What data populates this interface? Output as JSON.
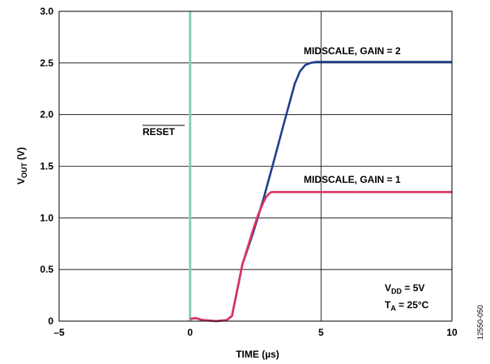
{
  "chart_data": {
    "type": "line",
    "title": "",
    "xlabel": "TIME (µs)",
    "ylabel": {
      "main": "V",
      "sub": "OUT",
      "unit": " (V)"
    },
    "xlim": [
      -5,
      10
    ],
    "ylim": [
      0,
      3.0
    ],
    "x_ticks": [
      -5,
      0,
      5,
      10
    ],
    "x_tick_labels": [
      "–5",
      "0",
      "5",
      "10"
    ],
    "y_ticks": [
      0,
      0.5,
      1.0,
      1.5,
      2.0,
      2.5,
      3.0
    ],
    "y_tick_labels": [
      "0",
      "0.5",
      "1.0",
      "1.5",
      "2.0",
      "2.5",
      "3.0"
    ],
    "grid": true,
    "series": [
      {
        "name": "MIDSCALE, GAIN = 2",
        "color": "#1f3f8f",
        "x": [
          0.0,
          0.2,
          0.5,
          1.0,
          1.4,
          1.6,
          1.8,
          2.0,
          2.4,
          2.8,
          3.2,
          3.6,
          4.0,
          4.2,
          4.4,
          4.6,
          4.8,
          5.0,
          6.0,
          8.0,
          10.0
        ],
        "y": [
          0.02,
          0.03,
          0.01,
          0.0,
          0.01,
          0.05,
          0.3,
          0.55,
          0.85,
          1.18,
          1.55,
          1.93,
          2.3,
          2.42,
          2.48,
          2.5,
          2.51,
          2.51,
          2.51,
          2.51,
          2.51
        ]
      },
      {
        "name": "MIDSCALE, GAIN = 1",
        "color": "#d9345f",
        "x": [
          0.0,
          0.2,
          0.5,
          1.0,
          1.4,
          1.6,
          1.8,
          2.0,
          2.4,
          2.6,
          2.8,
          2.9,
          3.0,
          3.1,
          3.2,
          3.4,
          4.0,
          6.0,
          8.0,
          10.0
        ],
        "y": [
          0.02,
          0.03,
          0.01,
          0.0,
          0.01,
          0.05,
          0.3,
          0.55,
          0.88,
          1.03,
          1.15,
          1.2,
          1.23,
          1.25,
          1.25,
          1.25,
          1.25,
          1.25,
          1.25,
          1.25
        ]
      },
      {
        "name": "RESET",
        "color": "#88cfb0",
        "x": [
          0.0,
          0.0
        ],
        "y": [
          0.0,
          3.0
        ]
      }
    ],
    "annotations": {
      "gain2": "MIDSCALE, GAIN = 2",
      "gain1": "MIDSCALE, GAIN = 1",
      "reset": "RESET",
      "vdd": {
        "main": "V",
        "sub": "DD",
        "rest": " = 5V"
      },
      "ta": {
        "main": "T",
        "sub": "A",
        "rest": " = 25°C"
      }
    },
    "figure_id": "12550-050"
  }
}
